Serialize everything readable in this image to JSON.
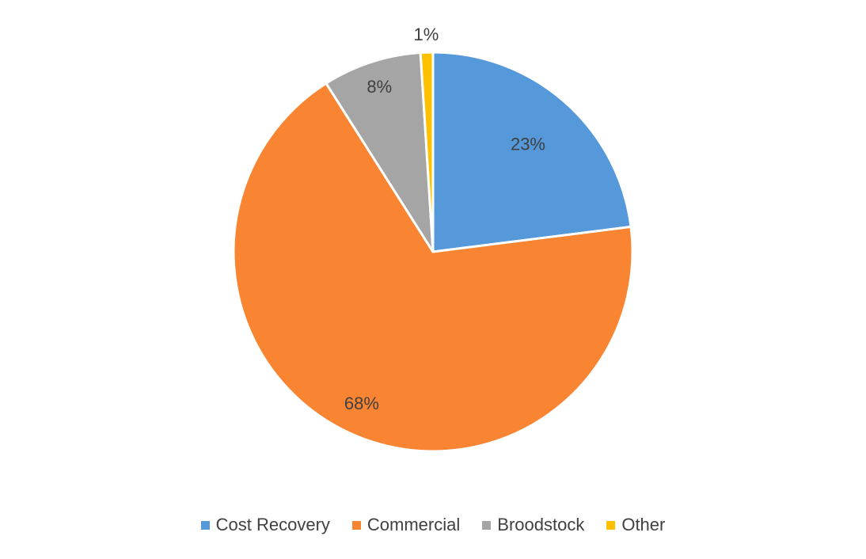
{
  "chart_data": {
    "type": "pie",
    "categories": [
      "Cost Recovery",
      "Commercial",
      "Broodstock",
      "Other"
    ],
    "values": [
      23,
      68,
      8,
      1
    ],
    "data_labels": [
      "23%",
      "68%",
      "8%",
      "1%"
    ],
    "colors": [
      "#5599DB",
      "#F98533",
      "#A5A5A5",
      "#FFC000"
    ],
    "legend_position": "bottom",
    "start_angle_deg": 0,
    "direction": "clockwise"
  }
}
